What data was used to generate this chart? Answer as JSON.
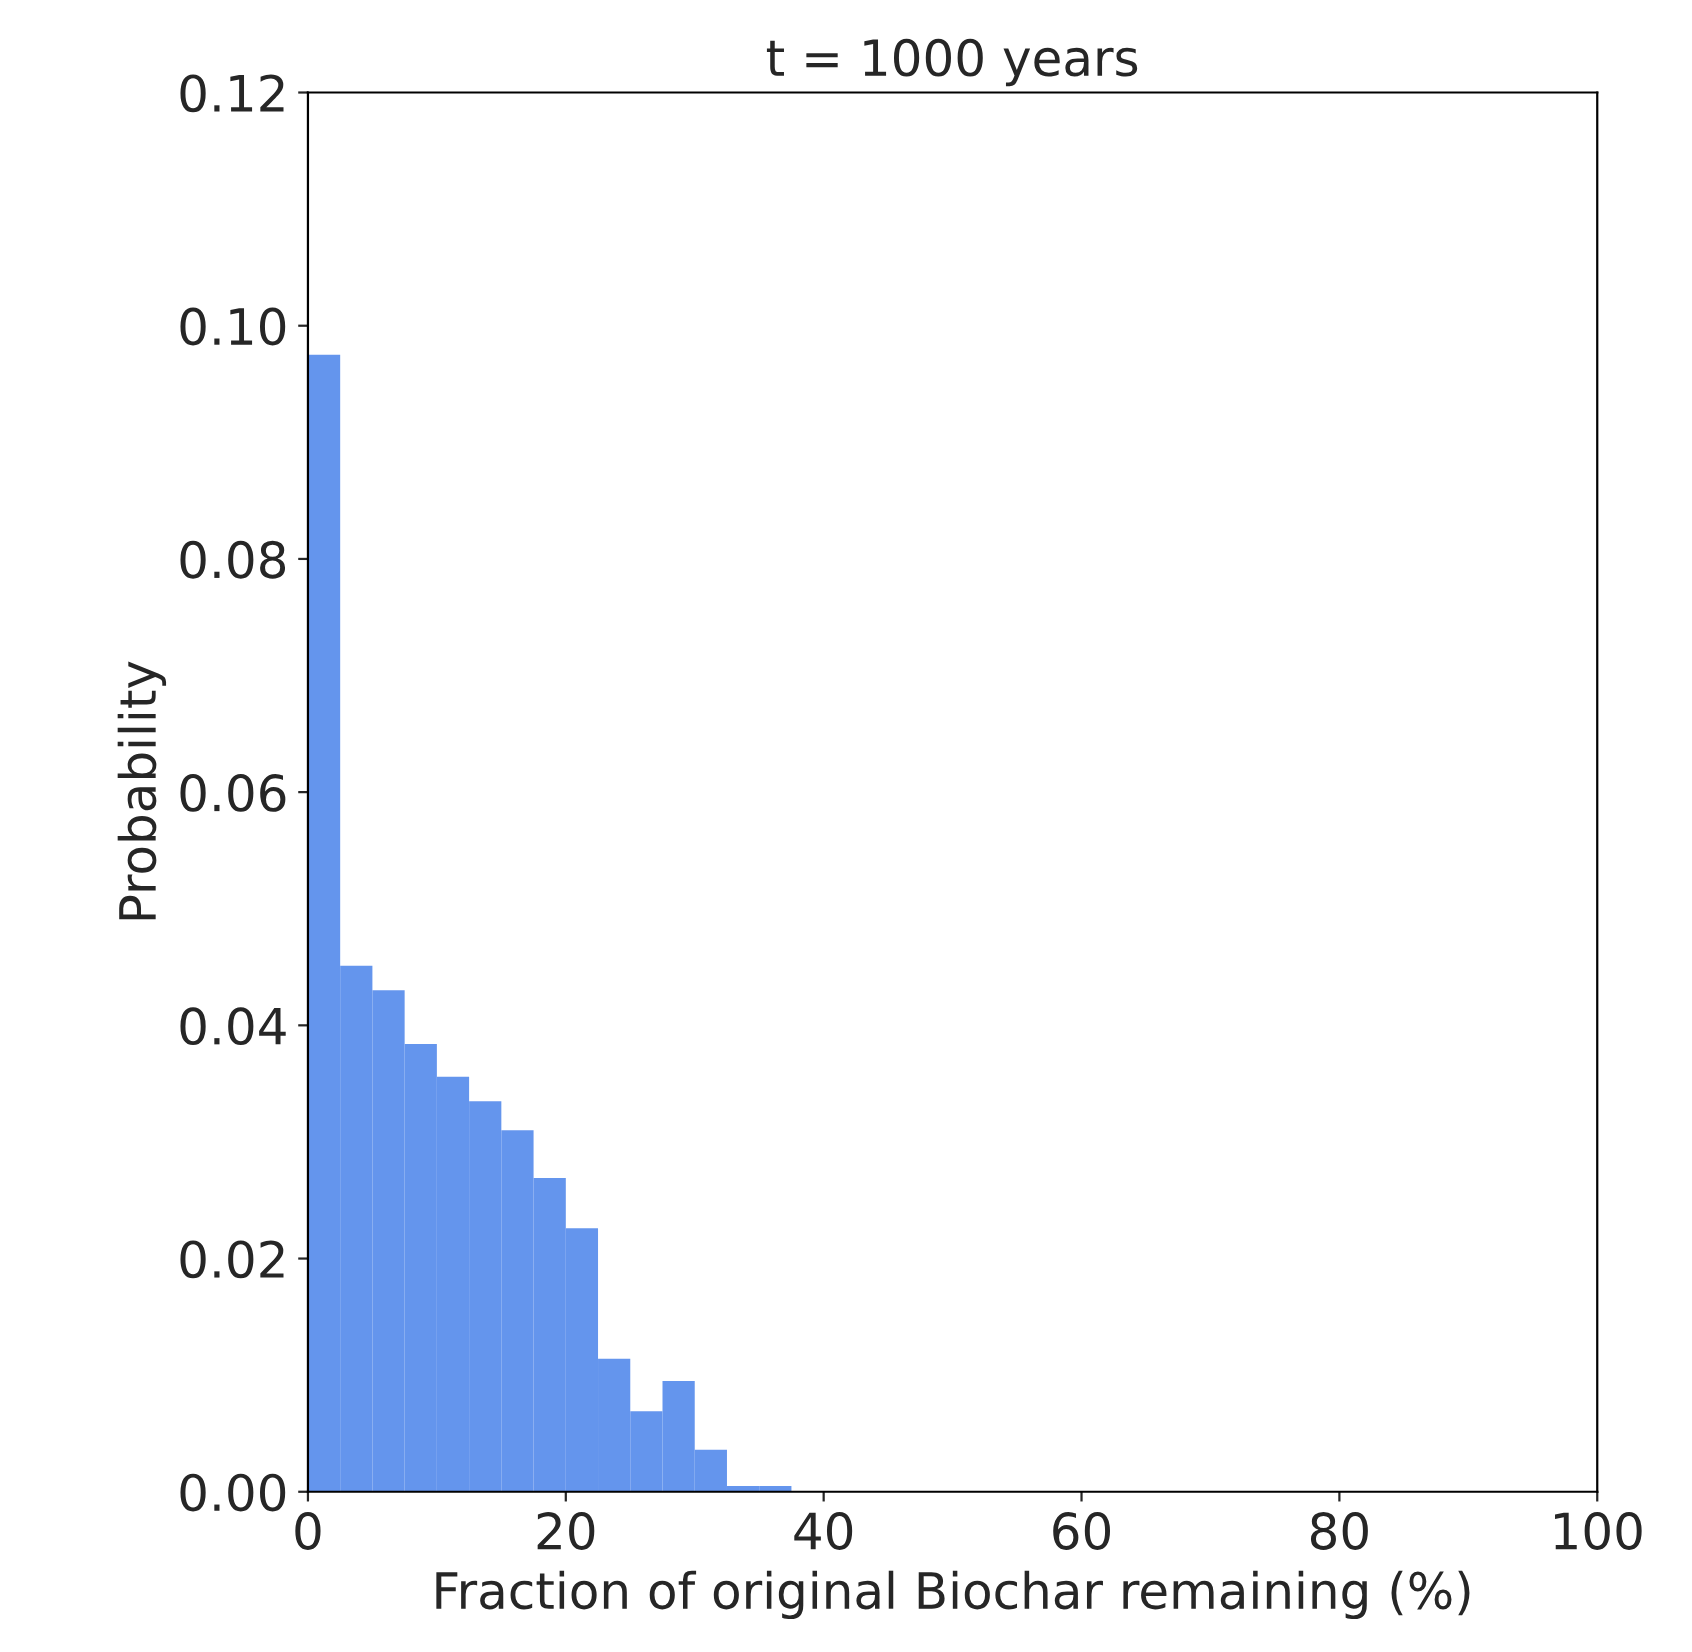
{
  "chart_data": {
    "type": "histogram",
    "title": "t = 1000 years",
    "xlabel": "Fraction of original Biochar remaining (%)",
    "ylabel": "Probability",
    "bins": [
      0,
      2.5,
      5,
      7.5,
      10,
      12.5,
      15,
      17.5,
      20,
      22.5,
      25,
      27.5,
      30,
      32.5,
      35,
      37.5
    ],
    "values": [
      0.0975,
      0.0451,
      0.043,
      0.0384,
      0.0356,
      0.0335,
      0.031,
      0.0269,
      0.0226,
      0.0114,
      0.0069,
      0.0095,
      0.0036,
      0.0005,
      0.0005
    ],
    "color": "#6495ed",
    "xlim": [
      0,
      100
    ],
    "xticks": [
      0,
      20,
      40,
      60,
      80,
      100
    ],
    "ylim": [
      0,
      0.12
    ],
    "yticks": [
      {
        "value": 0,
        "label": "0.00"
      },
      {
        "value": 0.02,
        "label": "0.02"
      },
      {
        "value": 0.04,
        "label": "0.04"
      },
      {
        "value": 0.06,
        "label": "0.06"
      },
      {
        "value": 0.08,
        "label": "0.08"
      },
      {
        "value": 0.1,
        "label": "0.10"
      },
      {
        "value": 0.12,
        "label": "0.12"
      }
    ],
    "grid": false,
    "legend": false
  }
}
